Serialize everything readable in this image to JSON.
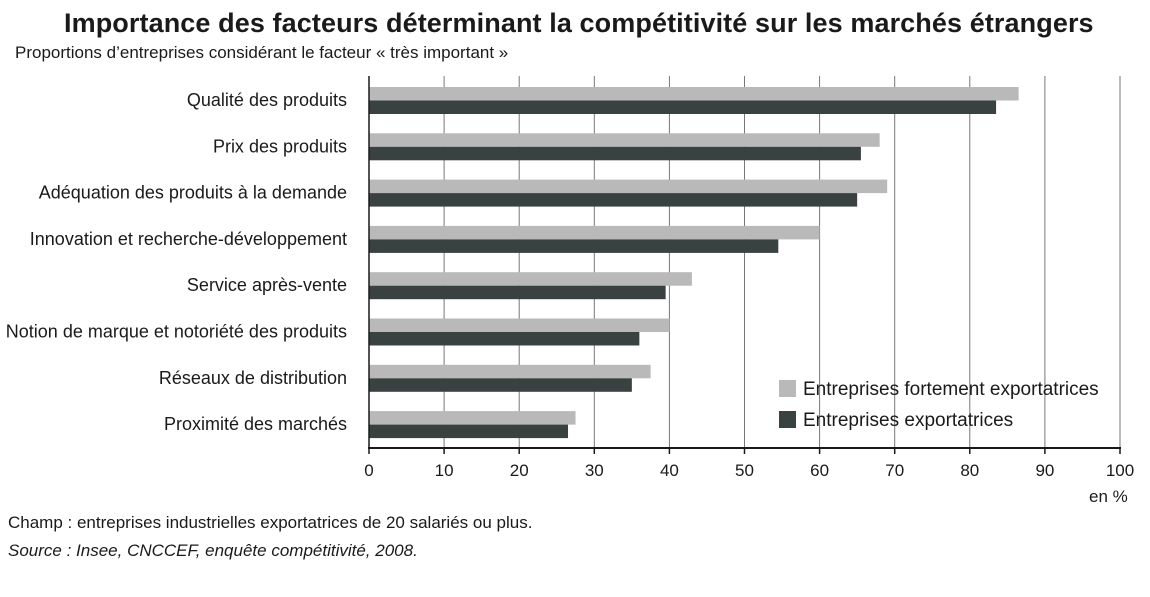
{
  "colors": {
    "series_fortement": "#b9b9b9",
    "series_exportatrices": "#3a4141",
    "grid": "#777777",
    "axis": "#1a1a1a"
  },
  "chart_data": {
    "type": "bar",
    "orientation": "horizontal",
    "title": "Importance des facteurs déterminant la compétitivité  sur les marchés étrangers",
    "subtitle": "Proportions d’entreprises considérant le facteur « très important »",
    "categories": [
      "Qualité des produits",
      "Prix des produits",
      "Adéquation des produits à la demande",
      "Innovation et recherche-développement",
      "Service après-vente",
      "Notion de marque et notoriété des produits",
      "Réseaux de distribution",
      "Proximité des marchés"
    ],
    "series": [
      {
        "name": "Entreprises fortement exportatrices",
        "values": [
          86.5,
          68,
          69,
          60,
          43,
          40,
          37.5,
          27.5
        ]
      },
      {
        "name": "Entreprises exportatrices",
        "values": [
          83.5,
          65.5,
          65,
          54.5,
          39.5,
          36,
          35,
          26.5
        ]
      }
    ],
    "xlim": [
      0,
      100
    ],
    "xticks": [
      0,
      10,
      20,
      30,
      40,
      50,
      60,
      70,
      80,
      90,
      100
    ],
    "xunit": "en %",
    "grid": true,
    "legend_position": "bottom-right"
  },
  "footer": {
    "champ": "Champ : entreprises industrielles exportatrices de 20 salariés ou plus.",
    "source": "Source : Insee, CNCCEF, enquête compétitivité, 2008."
  }
}
